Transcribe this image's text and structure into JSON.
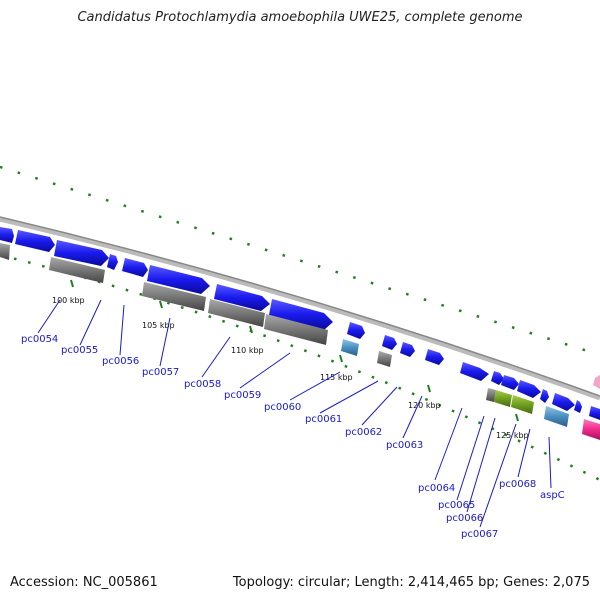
{
  "title": "Candidatus Protochlamydia amoebophila UWE25, complete genome",
  "accession_text": "Accession: NC_005861",
  "summary_text": "Topology: circular; Length: 2,414,465 bp; Genes: 2,075",
  "colors": {
    "cds_forward": "#1a1aee",
    "cds_shadow": "#777777",
    "backbone": "#999999",
    "dotted": "#1f7f1f",
    "label": "#1a1acc",
    "rrna_light": "#4a8fc0",
    "olive": "#6f9f1f",
    "magenta": "#ee2a8a",
    "pink": "#f4a6c9"
  },
  "tick_labels": [
    "100 kbp",
    "105 kbp",
    "110 kbp",
    "115 kbp",
    "120 kbp",
    "125 kbp"
  ],
  "gene_labels": [
    "pc0054",
    "pc0055",
    "pc0056",
    "pc0057",
    "pc0058",
    "pc0059",
    "pc0060",
    "pc0061",
    "pc0062",
    "pc0063",
    "pc0064",
    "pc0065",
    "pc0066",
    "pc0067",
    "pc0068",
    "aspC"
  ]
}
